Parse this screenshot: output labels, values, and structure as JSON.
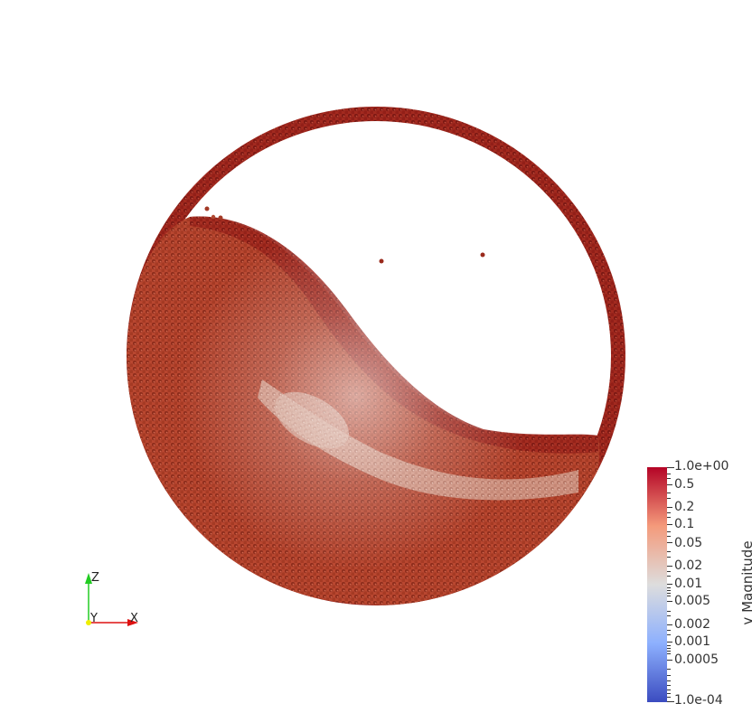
{
  "colorbar": {
    "title": "v Magnitude",
    "min_label": "1.0e-04",
    "max_label": "1.0e+00",
    "labels": [
      "0.5",
      "0.2",
      "0.1",
      "0.05",
      "0.02",
      "0.01",
      "0.005",
      "0.002",
      "0.001",
      "0.0005"
    ],
    "colors": {
      "low": "#3b4cc0",
      "mid": "#dddddd",
      "high": "#b40426"
    }
  },
  "axes": {
    "x_label": "X",
    "y_label": "Y",
    "z_label": "Z"
  },
  "colors": {
    "particle_bulk": "#b8452f",
    "particle_fast": "#a8201e",
    "particle_slow": "#d9b8a8",
    "background": "#ffffff"
  }
}
